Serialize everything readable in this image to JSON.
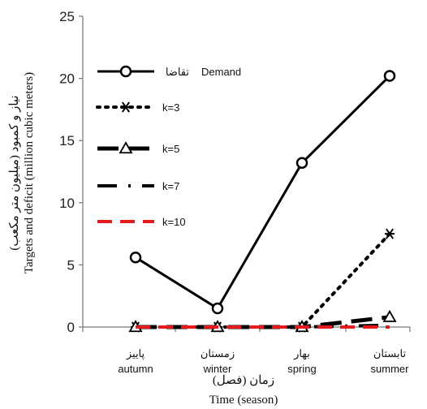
{
  "chart_data": {
    "type": "line",
    "categories": [
      {
        "fa": "پاییز",
        "en": "autumn"
      },
      {
        "fa": "زمستان",
        "en": "winter"
      },
      {
        "fa": "بهار",
        "en": "spring"
      },
      {
        "fa": "تابستان",
        "en": "summer"
      }
    ],
    "ylim": [
      0,
      25
    ],
    "yticks": [
      0,
      5,
      10,
      15,
      20,
      25
    ],
    "ylabel_fa": "نیاز و کمبود (میلیون متر مکعب)",
    "ylabel_en": "Targets and deficit (million cubic meters)",
    "xlabel_fa": "زمان (فصل)",
    "xlabel_en": "Time (season)",
    "legend_placement": "top-left",
    "series": [
      {
        "name_fa": "تقاضا",
        "name_en": "Demand",
        "values": [
          5.6,
          1.5,
          13.2,
          20.2
        ],
        "color": "#000000",
        "style": "solid",
        "marker": "circle"
      },
      {
        "name_en": "k=3",
        "values": [
          0,
          0,
          0,
          7.5
        ],
        "color": "#000000",
        "style": "dotted",
        "marker": "star"
      },
      {
        "name_en": "k=5",
        "values": [
          0,
          0,
          0,
          0.8
        ],
        "color": "#000000",
        "style": "longdash",
        "marker": "triangle"
      },
      {
        "name_en": "k=7",
        "values": [
          0,
          0,
          0,
          0.15
        ],
        "color": "#000000",
        "style": "dashdot",
        "marker": "none"
      },
      {
        "name_en": "k=10",
        "values": [
          0,
          0,
          0,
          0
        ],
        "color": "#e41a1c",
        "style": "dashed",
        "marker": "none"
      }
    ]
  }
}
